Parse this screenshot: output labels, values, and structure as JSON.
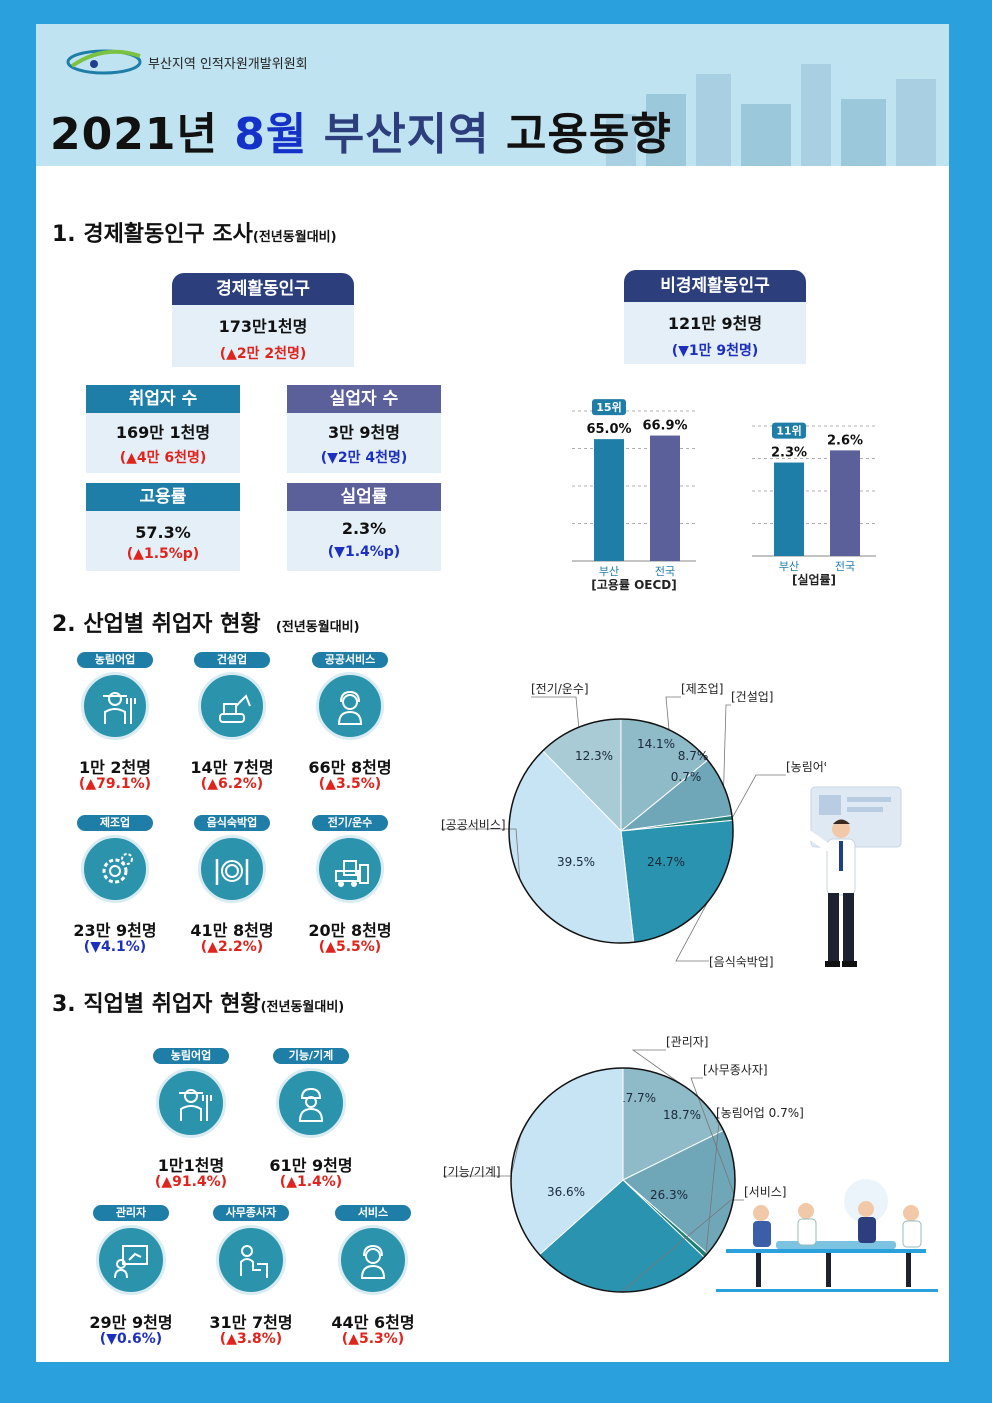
{
  "header": {
    "org_name": "부산지역 인적자원개발위원회",
    "title_year": "2021년",
    "title_month": "8월",
    "title_region": "부산지역",
    "title_rest": "고용동향"
  },
  "section1": {
    "title": "1. 경제활동인구 조사",
    "subtitle": "(전년동월대비)",
    "econ_active": {
      "label": "경제활동인구",
      "value": "173만1천명",
      "change": "(▲2만 2천명)"
    },
    "non_econ_active": {
      "label": "비경제활동인구",
      "value": "121만 9천명",
      "change": "(▼1만 9천명)"
    },
    "employed": {
      "label": "취업자 수",
      "value": "169만 1천명",
      "change": "(▲4만 6천명)"
    },
    "unemployed": {
      "label": "실업자 수",
      "value": "3만 9천명",
      "change": "(▼2만 4천명)"
    },
    "employment_rate": {
      "label": "고용률",
      "value": "57.3%",
      "change": "(▲1.5%p)"
    },
    "unemployment_rate": {
      "label": "실업률",
      "value": "2.3%",
      "change": "(▼1.4%p)"
    }
  },
  "chart_data": [
    {
      "type": "bar",
      "categories": [
        "부산",
        "전국"
      ],
      "values": [
        65.0,
        66.9
      ],
      "value_labels": [
        "65.0%",
        "66.9%"
      ],
      "rank_badge": "15위",
      "xlabel": "[고용률 OECD]",
      "colors": [
        "#1f7ea8",
        "#5b5f9a"
      ]
    },
    {
      "type": "bar",
      "categories": [
        "부산",
        "전국"
      ],
      "values": [
        2.3,
        2.6
      ],
      "value_labels": [
        "2.3%",
        "2.6%"
      ],
      "rank_badge": "11위",
      "xlabel": "[실업률]",
      "colors": [
        "#1f7ea8",
        "#5b5f9a"
      ]
    },
    {
      "type": "pie",
      "categories": [
        "[전기/운수]",
        "[제조업]",
        "[건설업]",
        "[농림어업]",
        "[음식숙박업]",
        "[공공서비스]"
      ],
      "values": [
        12.3,
        14.1,
        8.7,
        0.7,
        24.7,
        39.5
      ],
      "value_labels": [
        "12.3%",
        "14.1%",
        "8.7%",
        "0.7%",
        "24.7%",
        "39.5%"
      ],
      "colors": [
        "#a9cbd6",
        "#8fbac8",
        "#6fa6b8",
        "#1f7f74",
        "#2a94b0",
        "#c6e4f4"
      ]
    },
    {
      "type": "pie",
      "categories": [
        "[관리자]",
        "[사무종사자]",
        "[농림어업 0.7%]",
        "[서비스]",
        "[기능/기계]"
      ],
      "values": [
        17.7,
        18.7,
        0.7,
        26.3,
        36.6
      ],
      "value_labels": [
        "17.7%",
        "18.7%",
        "",
        "26.3%",
        "36.6%"
      ],
      "colors": [
        "#8fbac8",
        "#6fa6b8",
        "#1f7f74",
        "#2a94b0",
        "#c6e4f4"
      ]
    }
  ],
  "section2": {
    "title": "2. 산업별 취업자 현황",
    "subtitle": "(전년동월대비)",
    "items": [
      {
        "label": "농림어업",
        "value": "1만 2천명",
        "change": "(▲79.1%)",
        "icon": "farmer-icon"
      },
      {
        "label": "건설업",
        "value": "14만 7천명",
        "change": "(▲6.2%)",
        "icon": "excavator-icon"
      },
      {
        "label": "공공서비스",
        "value": "66만 8천명",
        "change": "(▲3.5%)",
        "icon": "headset-icon"
      },
      {
        "label": "제조업",
        "value": "23만 9천명",
        "change": "(▼4.1%)",
        "icon": "gear-icon"
      },
      {
        "label": "음식숙박업",
        "value": "41만 8천명",
        "change": "(▲2.2%)",
        "icon": "dining-icon"
      },
      {
        "label": "전기/운수",
        "value": "20만 8천명",
        "change": "(▲5.5%)",
        "icon": "forklift-icon"
      }
    ]
  },
  "section3": {
    "title": "3. 직업별 취업자 현황",
    "subtitle": "(전년동월대비)",
    "items": [
      {
        "label": "농림어업",
        "value": "1만1천명",
        "change": "(▲91.4%)",
        "icon": "farmer-icon"
      },
      {
        "label": "기능/기계",
        "value": "61만 9천명",
        "change": "(▲1.4%)",
        "icon": "worker-icon"
      },
      {
        "label": "관리자",
        "value": "29만 9천명",
        "change": "(▼0.6%)",
        "icon": "presenter-icon"
      },
      {
        "label": "사무종사자",
        "value": "31만 7천명",
        "change": "(▲3.8%)",
        "icon": "office-worker-icon"
      },
      {
        "label": "서비스",
        "value": "44만 6천명",
        "change": "(▲5.3%)",
        "icon": "headset-icon"
      }
    ]
  },
  "colors": {
    "background": "#2aa0dc",
    "header": "#bfe3f1",
    "navy": "#2c3f7c",
    "teal": "#1f7ea8",
    "purple": "#5b5f9a",
    "up": "#e0231c",
    "down": "#1d2fbf"
  }
}
